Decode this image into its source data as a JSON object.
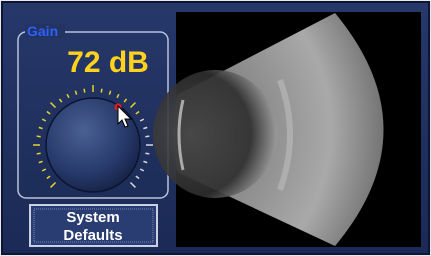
{
  "gain": {
    "label": "Gain",
    "value": "72 dB"
  },
  "button": {
    "lines": [
      "System",
      "Defaults"
    ]
  }
}
